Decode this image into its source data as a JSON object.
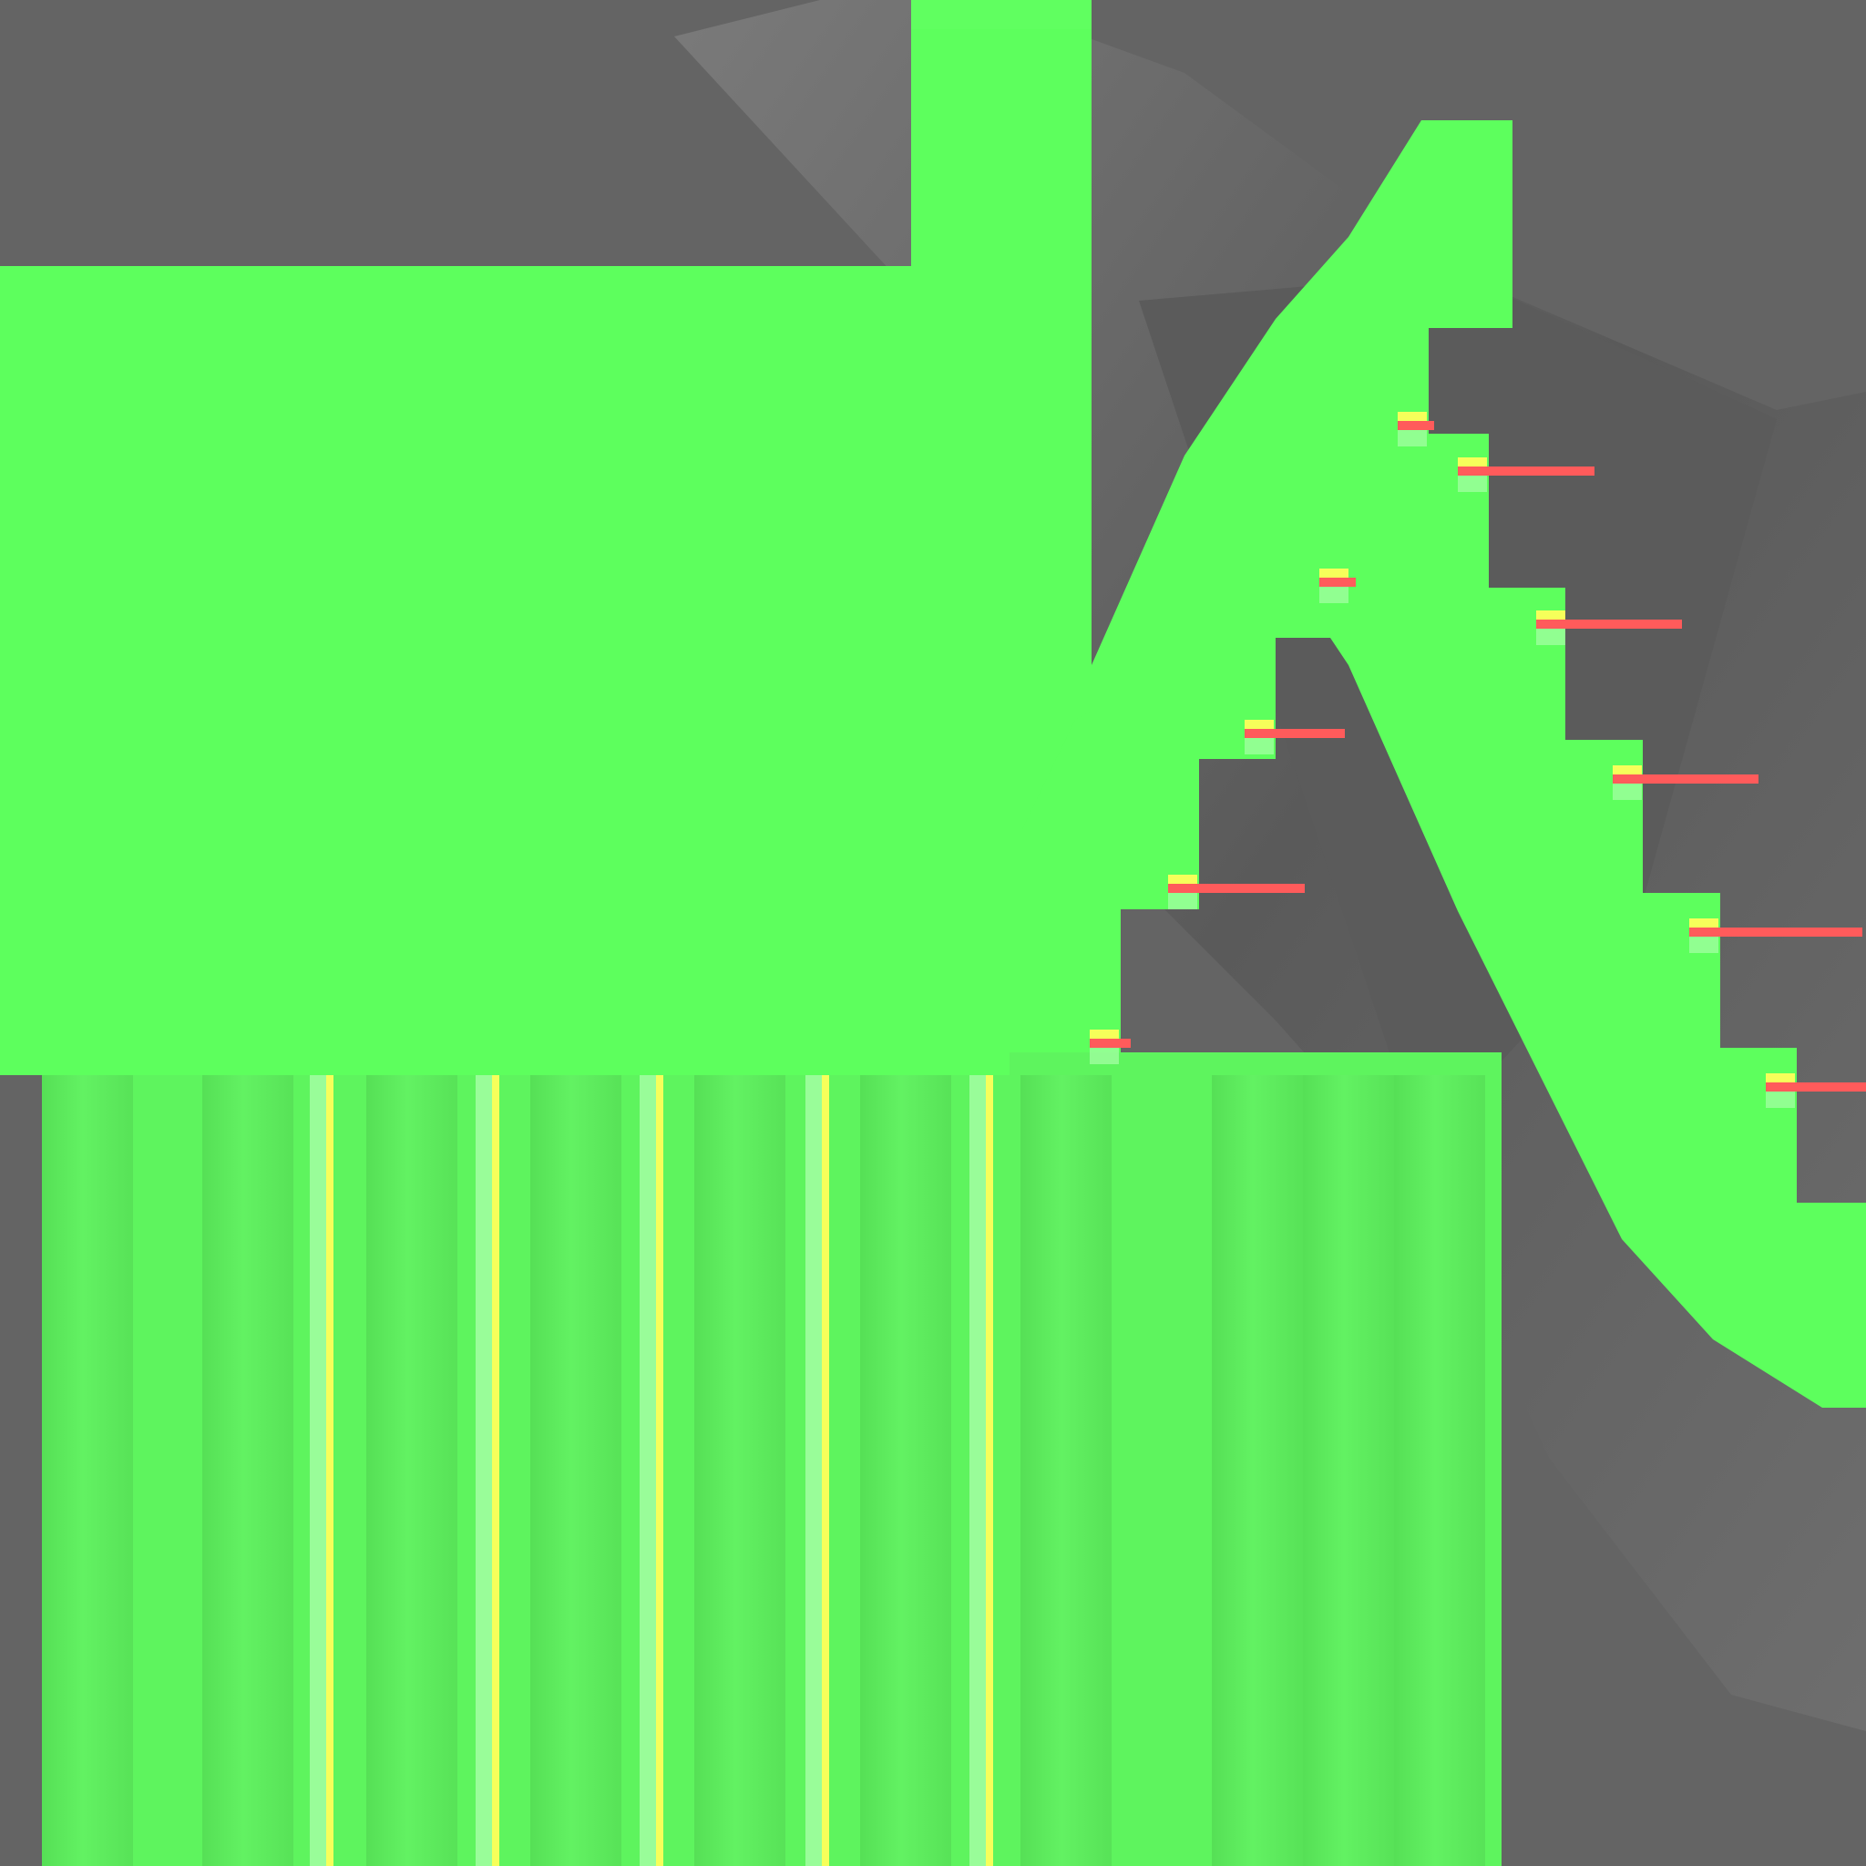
{
  "palette": {
    "background": "#646464",
    "shadow_dark": "#555555",
    "shadow_light": "#7a7a7a",
    "main_green": "#5dff5d",
    "panel_green": "#5ef45e",
    "groove_dark": "#52d852",
    "highlight_pale": "#a8ffa8",
    "highlight_yellow": "#f6ff5a",
    "highlight_red": "#ff5b5b"
  },
  "shapes": {
    "main_block": {
      "kind": "green-slab"
    },
    "tower": {
      "kind": "green-slab"
    },
    "arch": {
      "kind": "stepped-arch"
    },
    "lower_panel": {
      "kind": "ribbed-panel",
      "rib_count": 7,
      "yellow_line_count": 5
    },
    "shadow_fan_top": {
      "kind": "radial-shadow"
    },
    "shadow_fan_right": {
      "kind": "radial-shadow"
    },
    "edge_highlights": {
      "count": 10
    }
  }
}
